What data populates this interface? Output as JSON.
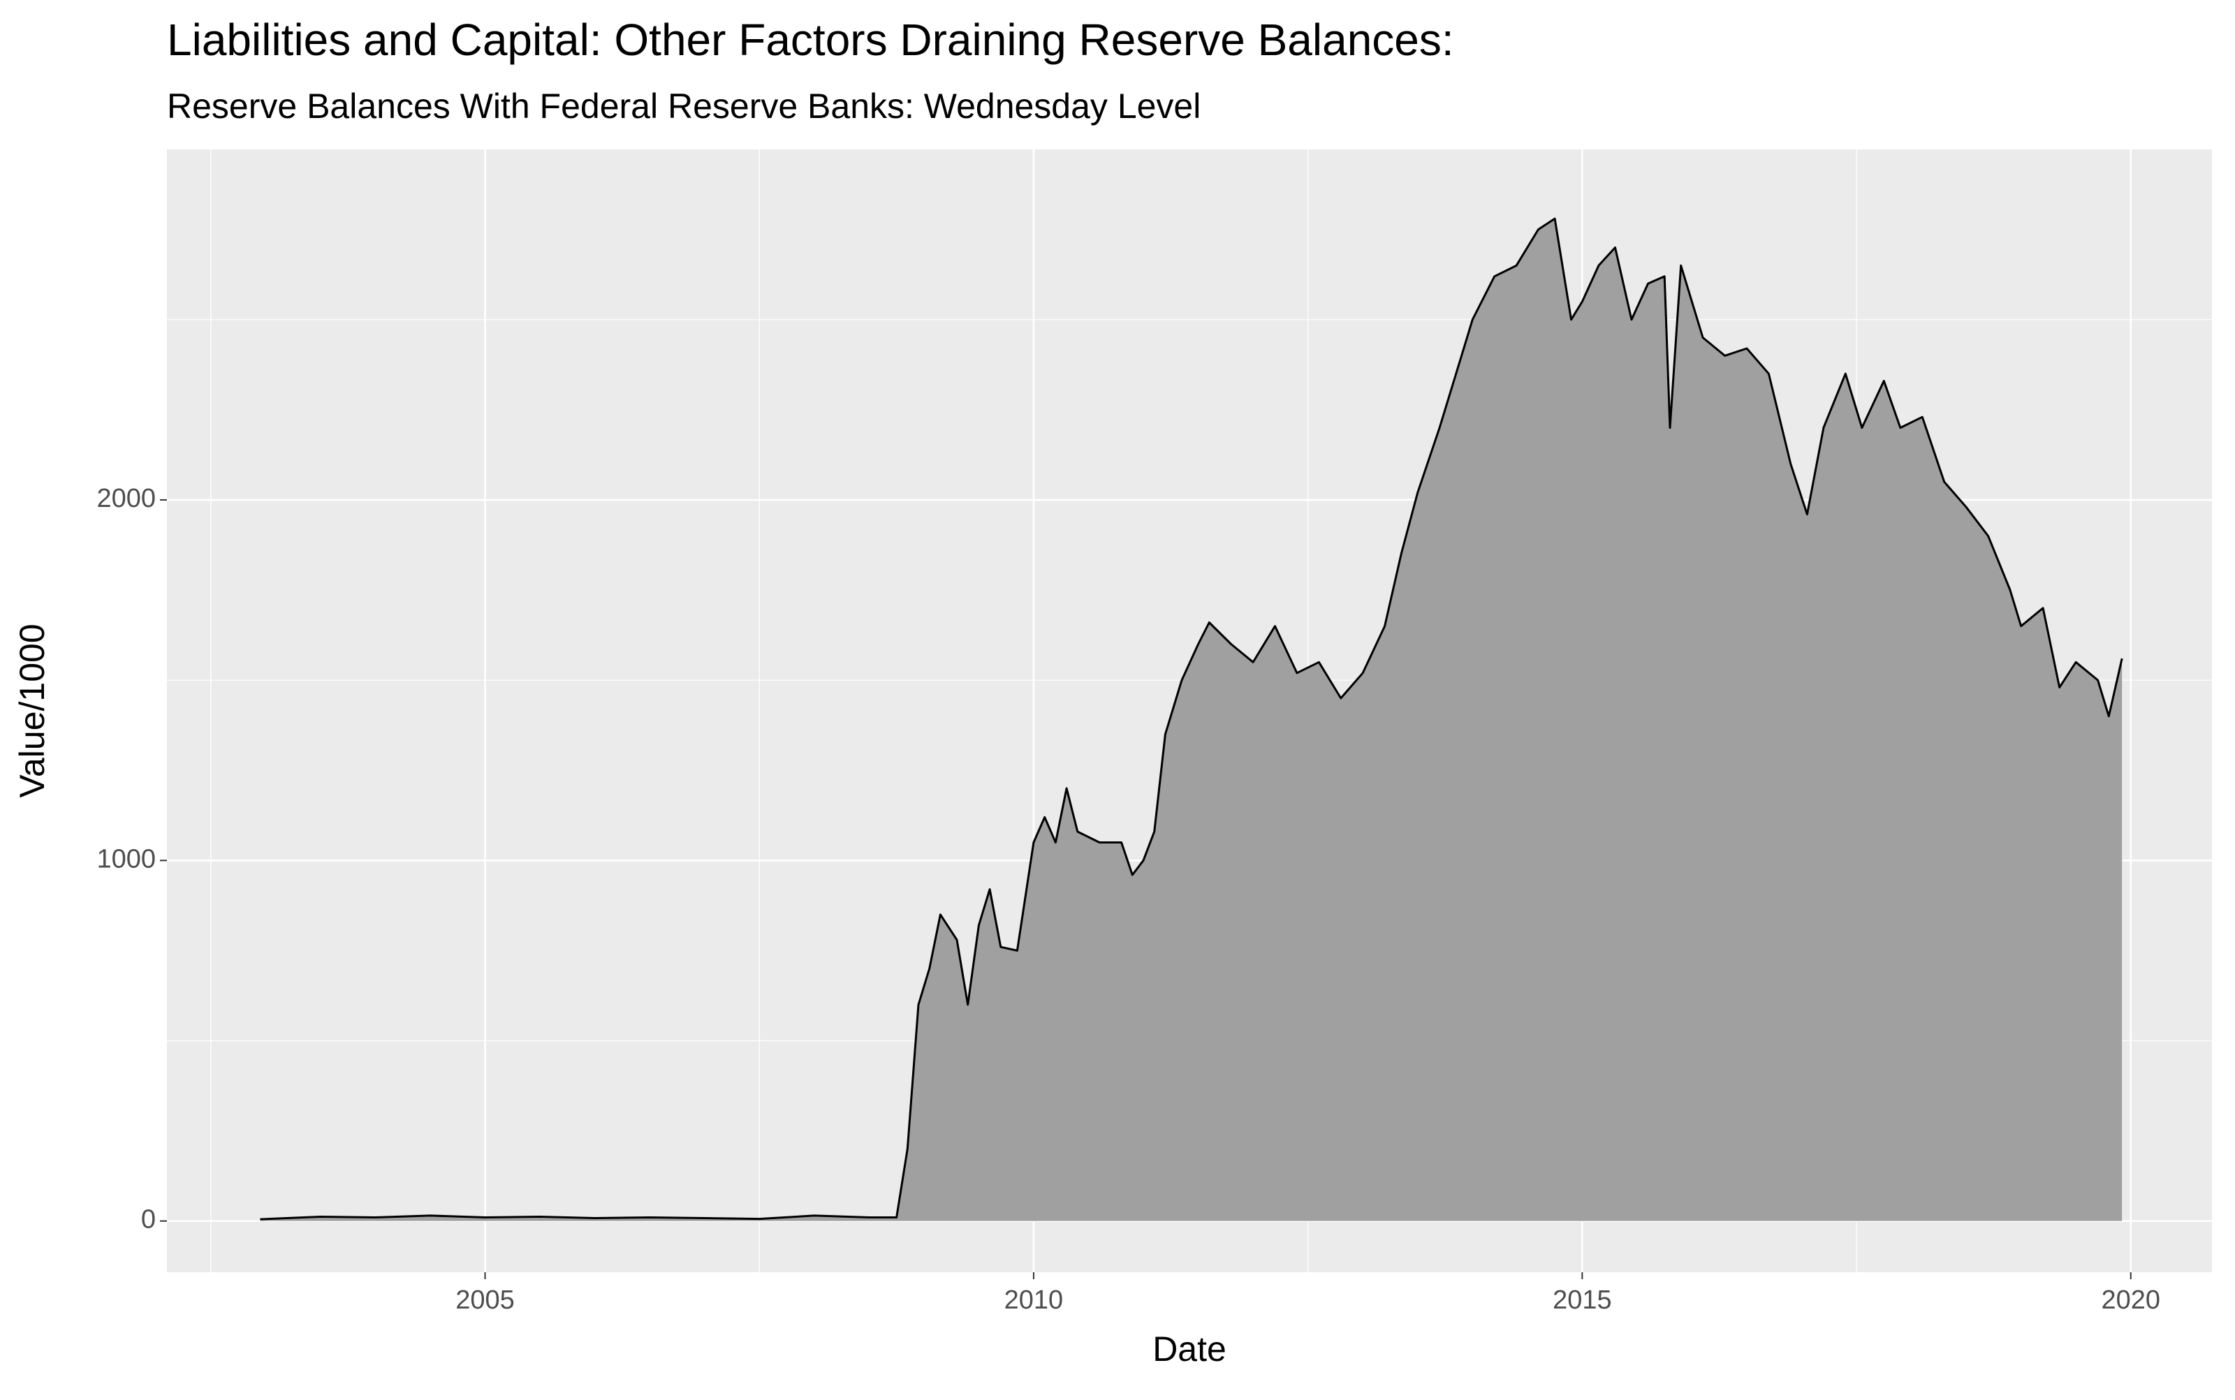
{
  "chart_data": {
    "type": "area",
    "title": "Liabilities and Capital: Other Factors Draining Reserve Balances:",
    "subtitle": "Reserve Balances With Federal Reserve Banks: Wednesday Level",
    "x_label": "Date",
    "y_label": "Value/1000",
    "x": [
      2002.95,
      2003.5,
      2004.0,
      2004.5,
      2005.0,
      2005.5,
      2006.0,
      2006.5,
      2007.0,
      2007.5,
      2008.0,
      2008.5,
      2008.75,
      2008.85,
      2008.95,
      2009.05,
      2009.15,
      2009.3,
      2009.4,
      2009.5,
      2009.6,
      2009.7,
      2009.85,
      2010.0,
      2010.1,
      2010.2,
      2010.3,
      2010.4,
      2010.6,
      2010.8,
      2010.9,
      2011.0,
      2011.1,
      2011.2,
      2011.35,
      2011.5,
      2011.6,
      2011.8,
      2012.0,
      2012.2,
      2012.4,
      2012.6,
      2012.8,
      2013.0,
      2013.2,
      2013.35,
      2013.5,
      2013.7,
      2013.9,
      2014.0,
      2014.2,
      2014.4,
      2014.6,
      2014.75,
      2014.9,
      2015.0,
      2015.15,
      2015.3,
      2015.45,
      2015.6,
      2015.75,
      2015.8,
      2015.9,
      2016.1,
      2016.3,
      2016.5,
      2016.7,
      2016.9,
      2017.05,
      2017.2,
      2017.4,
      2017.55,
      2017.75,
      2017.9,
      2018.1,
      2018.3,
      2018.5,
      2018.7,
      2018.9,
      2019.0,
      2019.2,
      2019.35,
      2019.5,
      2019.7,
      2019.8,
      2019.92
    ],
    "values": [
      5,
      12,
      10,
      15,
      10,
      12,
      8,
      10,
      8,
      6,
      15,
      10,
      10,
      200,
      600,
      700,
      850,
      780,
      600,
      820,
      920,
      760,
      750,
      1050,
      1120,
      1050,
      1200,
      1080,
      1050,
      1050,
      960,
      1000,
      1080,
      1350,
      1500,
      1600,
      1660,
      1600,
      1550,
      1650,
      1520,
      1550,
      1450,
      1520,
      1650,
      1850,
      2020,
      2200,
      2400,
      2500,
      2620,
      2650,
      2750,
      2780,
      2500,
      2550,
      2650,
      2700,
      2500,
      2600,
      2620,
      2200,
      2650,
      2450,
      2400,
      2420,
      2350,
      2100,
      1960,
      2200,
      2350,
      2200,
      2330,
      2200,
      2230,
      2050,
      1980,
      1900,
      1750,
      1650,
      1700,
      1480,
      1550,
      1500,
      1400,
      1560
    ],
    "color": "#000000",
    "fill": "#a0a0a0",
    "xlim": [
      2002.1,
      2020.74
    ],
    "xticks": [
      2005,
      2010,
      2015,
      2020
    ],
    "ylim": [
      -142,
      2972
    ],
    "yticks": [
      0,
      1000,
      2000
    ],
    "grid": true
  }
}
